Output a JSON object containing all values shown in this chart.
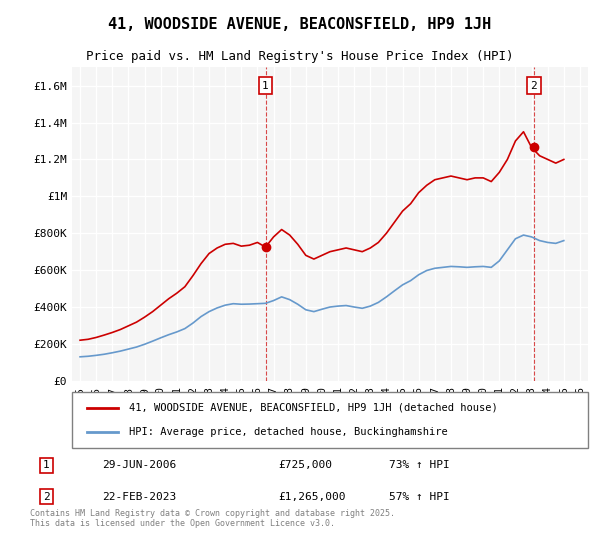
{
  "title": "41, WOODSIDE AVENUE, BEACONSFIELD, HP9 1JH",
  "subtitle": "Price paid vs. HM Land Registry's House Price Index (HPI)",
  "legend_line1": "41, WOODSIDE AVENUE, BEACONSFIELD, HP9 1JH (detached house)",
  "legend_line2": "HPI: Average price, detached house, Buckinghamshire",
  "sale1_label": "1",
  "sale1_date": "29-JUN-2006",
  "sale1_price": "£725,000",
  "sale1_hpi": "73% ↑ HPI",
  "sale1_year": 2006.5,
  "sale1_value": 725000,
  "sale2_label": "2",
  "sale2_date": "22-FEB-2023",
  "sale2_price": "£1,265,000",
  "sale2_hpi": "57% ↑ HPI",
  "sale2_year": 2023.14,
  "sale2_value": 1265000,
  "footer": "Contains HM Land Registry data © Crown copyright and database right 2025.\nThis data is licensed under the Open Government Licence v3.0.",
  "ylim": [
    0,
    1700000
  ],
  "xlim": [
    1994.5,
    2026.5
  ],
  "yticks": [
    0,
    200000,
    400000,
    600000,
    800000,
    1000000,
    1200000,
    1400000,
    1600000
  ],
  "ytick_labels": [
    "£0",
    "£200K",
    "£400K",
    "£600K",
    "£800K",
    "£1M",
    "£1.2M",
    "£1.4M",
    "£1.6M"
  ],
  "red_line_color": "#cc0000",
  "blue_line_color": "#6699cc",
  "background_color": "#f5f5f5",
  "grid_color": "#ffffff",
  "red_hpi_years": [
    1995.0,
    1995.5,
    1996.0,
    1996.5,
    1997.0,
    1997.5,
    1998.0,
    1998.5,
    1999.0,
    1999.5,
    2000.0,
    2000.5,
    2001.0,
    2001.5,
    2002.0,
    2002.5,
    2003.0,
    2003.5,
    2004.0,
    2004.5,
    2005.0,
    2005.5,
    2006.0,
    2006.5,
    2007.0,
    2007.5,
    2008.0,
    2008.5,
    2009.0,
    2009.5,
    2010.0,
    2010.5,
    2011.0,
    2011.5,
    2012.0,
    2012.5,
    2013.0,
    2013.5,
    2014.0,
    2014.5,
    2015.0,
    2015.5,
    2016.0,
    2016.5,
    2017.0,
    2017.5,
    2018.0,
    2018.5,
    2019.0,
    2019.5,
    2020.0,
    2020.5,
    2021.0,
    2021.5,
    2022.0,
    2022.5,
    2023.0,
    2023.5,
    2024.0,
    2024.5,
    2025.0
  ],
  "red_hpi_values": [
    220000,
    225000,
    235000,
    248000,
    262000,
    278000,
    298000,
    318000,
    345000,
    375000,
    410000,
    445000,
    475000,
    510000,
    570000,
    635000,
    690000,
    720000,
    740000,
    745000,
    730000,
    735000,
    750000,
    725000,
    780000,
    820000,
    790000,
    740000,
    680000,
    660000,
    680000,
    700000,
    710000,
    720000,
    710000,
    700000,
    720000,
    750000,
    800000,
    860000,
    920000,
    960000,
    1020000,
    1060000,
    1090000,
    1100000,
    1110000,
    1100000,
    1090000,
    1100000,
    1100000,
    1080000,
    1130000,
    1200000,
    1300000,
    1350000,
    1265000,
    1220000,
    1200000,
    1180000,
    1200000
  ],
  "blue_hpi_years": [
    1995.0,
    1995.5,
    1996.0,
    1996.5,
    1997.0,
    1997.5,
    1998.0,
    1998.5,
    1999.0,
    1999.5,
    2000.0,
    2000.5,
    2001.0,
    2001.5,
    2002.0,
    2002.5,
    2003.0,
    2003.5,
    2004.0,
    2004.5,
    2005.0,
    2005.5,
    2006.0,
    2006.5,
    2007.0,
    2007.5,
    2008.0,
    2008.5,
    2009.0,
    2009.5,
    2010.0,
    2010.5,
    2011.0,
    2011.5,
    2012.0,
    2012.5,
    2013.0,
    2013.5,
    2014.0,
    2014.5,
    2015.0,
    2015.5,
    2016.0,
    2016.5,
    2017.0,
    2017.5,
    2018.0,
    2018.5,
    2019.0,
    2019.5,
    2020.0,
    2020.5,
    2021.0,
    2021.5,
    2022.0,
    2022.5,
    2023.0,
    2023.5,
    2024.0,
    2024.5,
    2025.0
  ],
  "blue_hpi_values": [
    130000,
    133000,
    138000,
    144000,
    152000,
    161000,
    172000,
    183000,
    198000,
    215000,
    233000,
    250000,
    265000,
    283000,
    313000,
    348000,
    375000,
    395000,
    410000,
    418000,
    415000,
    416000,
    418000,
    420000,
    435000,
    455000,
    440000,
    415000,
    385000,
    375000,
    388000,
    400000,
    405000,
    408000,
    400000,
    393000,
    405000,
    425000,
    455000,
    488000,
    520000,
    543000,
    575000,
    598000,
    610000,
    615000,
    620000,
    618000,
    615000,
    618000,
    620000,
    615000,
    650000,
    710000,
    770000,
    790000,
    780000,
    760000,
    750000,
    745000,
    760000
  ],
  "xticks": [
    1995,
    1996,
    1997,
    1998,
    1999,
    2000,
    2001,
    2002,
    2003,
    2004,
    2005,
    2006,
    2007,
    2008,
    2009,
    2010,
    2011,
    2012,
    2013,
    2014,
    2015,
    2016,
    2017,
    2018,
    2019,
    2020,
    2021,
    2022,
    2023,
    2024,
    2025,
    2026
  ]
}
